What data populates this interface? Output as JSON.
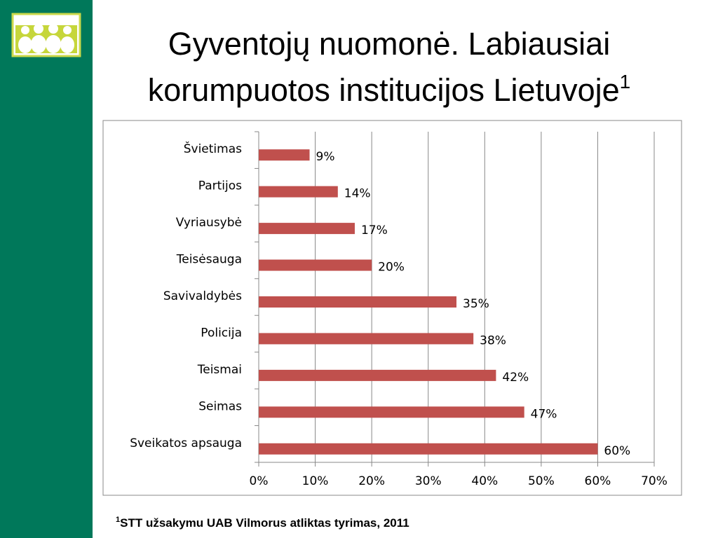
{
  "chart_data": {
    "type": "bar",
    "orientation": "horizontal",
    "title": "Gyventojų nuomonė. Labiausiai korumpuotos institucijos Lietuvoje",
    "title_note_marker": "1",
    "categories": [
      "Švietimas",
      "Partijos",
      "Vyriausybė",
      "Teisėsauga",
      "Savivaldybės",
      "Policija",
      "Teismai",
      "Seimas",
      "Sveikatos apsauga"
    ],
    "values": [
      9,
      14,
      17,
      20,
      35,
      38,
      42,
      47,
      60
    ],
    "value_labels": [
      "9%",
      "14%",
      "17%",
      "20%",
      "35%",
      "38%",
      "42%",
      "47%",
      "60%"
    ],
    "color": "#c0504d",
    "xlim": [
      0,
      70
    ],
    "xticks": [
      {
        "value": 0,
        "label": "0%"
      },
      {
        "value": 10,
        "label": "10%"
      },
      {
        "value": 20,
        "label": "20%"
      },
      {
        "value": 30,
        "label": "30%"
      },
      {
        "value": 40,
        "label": "40%"
      },
      {
        "value": 50,
        "label": "50%"
      },
      {
        "value": 60,
        "label": "60%"
      },
      {
        "value": 70,
        "label": "70%"
      }
    ],
    "grid": true,
    "footnote": {
      "marker": "1",
      "text": "STT užsakymu UAB Vilmorus atliktas tyrimas, 2011"
    }
  }
}
